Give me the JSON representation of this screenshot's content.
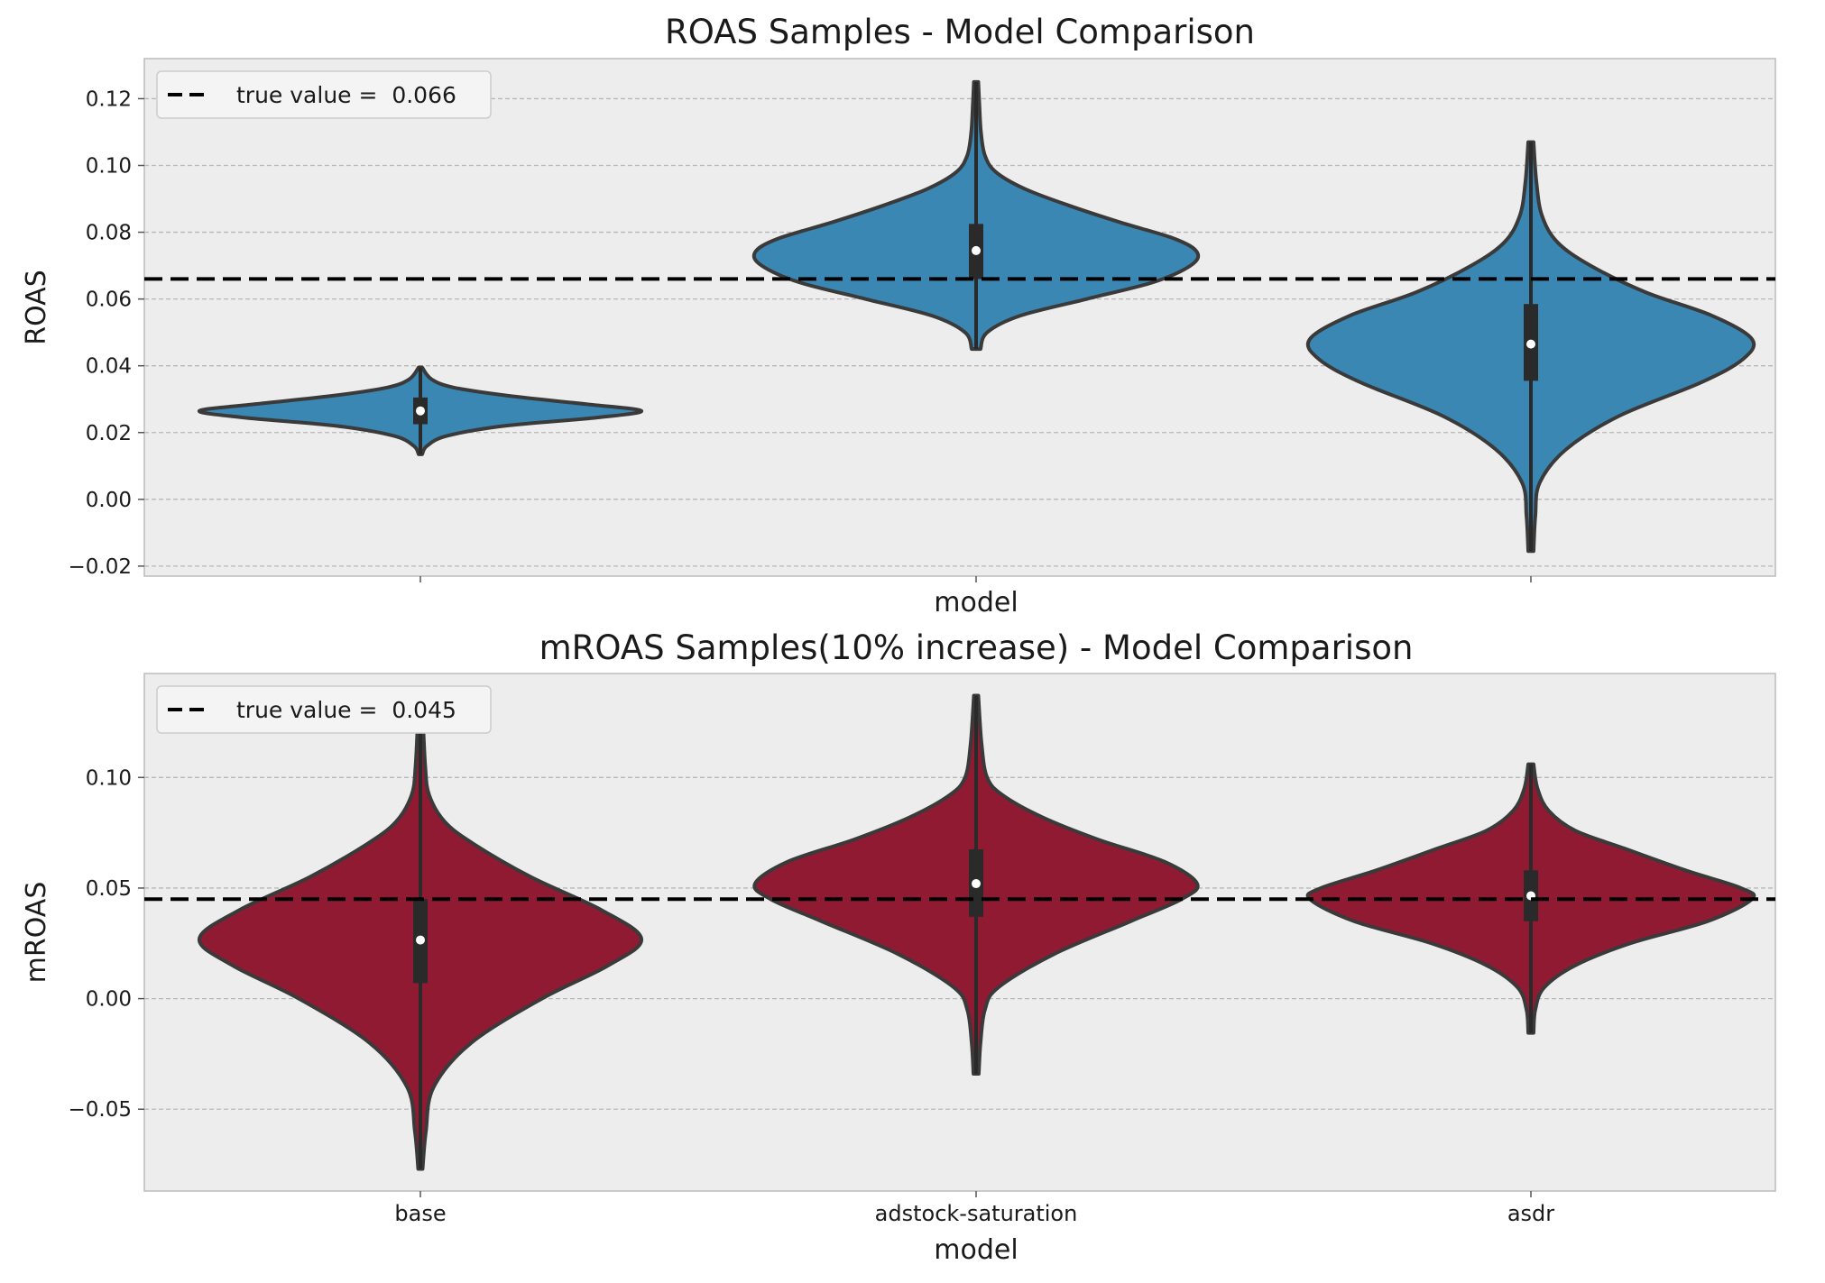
{
  "colors": {
    "figure_bg": "#ffffff",
    "axes_bg": "#ededed",
    "grid": "#b8b8b8",
    "spine": "#bcbcbc",
    "violin_edge": "#3a3a3a",
    "box": "#2a2a2a",
    "median": "#ffffff",
    "ref_line": "#000000",
    "roas_fill": "#3a87b4",
    "mroas_fill": "#911a33",
    "legend_bg": "#f4f4f4",
    "legend_edge": "#cccccc"
  },
  "chart_data": [
    {
      "type": "violin",
      "title": "ROAS Samples - Model Comparison",
      "xlabel": "model",
      "ylabel": "ROAS",
      "categories": [
        "base",
        "adstock-saturation",
        "asdr"
      ],
      "show_tick_labels": false,
      "ylim": [
        -0.023,
        0.132
      ],
      "yticks": [
        -0.02,
        0.0,
        0.02,
        0.04,
        0.06,
        0.08,
        0.1,
        0.12
      ],
      "ytick_labels": [
        "−0.02",
        "0.00",
        "0.02",
        "0.04",
        "0.06",
        "0.08",
        "0.10",
        "0.12"
      ],
      "grid": true,
      "legend_position": "upper-left",
      "reference_line": {
        "value": 0.066,
        "label": "true value =  0.066",
        "style": "dashed"
      },
      "series": [
        {
          "category": "base",
          "min": 0.0135,
          "max": 0.0395,
          "q1": 0.0225,
          "median": 0.0265,
          "q3": 0.0305,
          "profile": [
            [
              0.0135,
              0.008
            ],
            [
              0.016,
              0.03
            ],
            [
              0.019,
              0.12
            ],
            [
              0.022,
              0.38
            ],
            [
              0.0245,
              0.8
            ],
            [
              0.0265,
              1.0
            ],
            [
              0.0285,
              0.75
            ],
            [
              0.031,
              0.4
            ],
            [
              0.0335,
              0.15
            ],
            [
              0.036,
              0.05
            ],
            [
              0.0395,
              0.008
            ]
          ]
        },
        {
          "category": "adstock-saturation",
          "min": 0.045,
          "max": 0.125,
          "q1": 0.066,
          "median": 0.0745,
          "q3": 0.0825,
          "profile": [
            [
              0.045,
              0.02
            ],
            [
              0.05,
              0.05
            ],
            [
              0.055,
              0.2
            ],
            [
              0.06,
              0.5
            ],
            [
              0.065,
              0.8
            ],
            [
              0.07,
              0.97
            ],
            [
              0.074,
              1.0
            ],
            [
              0.078,
              0.9
            ],
            [
              0.083,
              0.65
            ],
            [
              0.088,
              0.42
            ],
            [
              0.093,
              0.22
            ],
            [
              0.098,
              0.09
            ],
            [
              0.103,
              0.04
            ],
            [
              0.11,
              0.022
            ],
            [
              0.118,
              0.015
            ],
            [
              0.125,
              0.01
            ]
          ]
        },
        {
          "category": "asdr",
          "min": -0.0155,
          "max": 0.107,
          "q1": 0.0355,
          "median": 0.0465,
          "q3": 0.0585,
          "profile": [
            [
              -0.0155,
              0.012
            ],
            [
              -0.005,
              0.02
            ],
            [
              0.005,
              0.04
            ],
            [
              0.015,
              0.16
            ],
            [
              0.025,
              0.4
            ],
            [
              0.035,
              0.77
            ],
            [
              0.042,
              0.96
            ],
            [
              0.048,
              1.0
            ],
            [
              0.055,
              0.82
            ],
            [
              0.062,
              0.52
            ],
            [
              0.07,
              0.27
            ],
            [
              0.077,
              0.12
            ],
            [
              0.085,
              0.05
            ],
            [
              0.095,
              0.025
            ],
            [
              0.107,
              0.012
            ]
          ]
        }
      ]
    },
    {
      "type": "violin",
      "title": "mROAS Samples(10% increase) - Model Comparison",
      "xlabel": "model",
      "ylabel": "mROAS",
      "categories": [
        "base",
        "adstock-saturation",
        "asdr"
      ],
      "show_tick_labels": true,
      "ylim": [
        -0.087,
        0.147
      ],
      "yticks": [
        -0.05,
        0.0,
        0.05,
        0.1
      ],
      "ytick_labels": [
        "−0.05",
        "0.00",
        "0.05",
        "0.10"
      ],
      "grid": true,
      "legend_position": "upper-left",
      "reference_line": {
        "value": 0.045,
        "label": "true value =  0.045",
        "style": "dashed"
      },
      "series": [
        {
          "category": "base",
          "min": -0.077,
          "max": 0.13,
          "q1": 0.007,
          "median": 0.0265,
          "q3": 0.045,
          "profile": [
            [
              -0.077,
              0.01
            ],
            [
              -0.06,
              0.025
            ],
            [
              -0.04,
              0.06
            ],
            [
              -0.02,
              0.23
            ],
            [
              0.0,
              0.55
            ],
            [
              0.015,
              0.85
            ],
            [
              0.027,
              1.0
            ],
            [
              0.04,
              0.82
            ],
            [
              0.055,
              0.5
            ],
            [
              0.07,
              0.24
            ],
            [
              0.08,
              0.11
            ],
            [
              0.092,
              0.04
            ],
            [
              0.105,
              0.022
            ],
            [
              0.13,
              0.01
            ]
          ]
        },
        {
          "category": "adstock-saturation",
          "min": -0.034,
          "max": 0.137,
          "q1": 0.037,
          "median": 0.052,
          "q3": 0.0675,
          "profile": [
            [
              -0.034,
              0.012
            ],
            [
              -0.02,
              0.02
            ],
            [
              -0.005,
              0.04
            ],
            [
              0.005,
              0.1
            ],
            [
              0.02,
              0.35
            ],
            [
              0.035,
              0.7
            ],
            [
              0.045,
              0.93
            ],
            [
              0.052,
              1.0
            ],
            [
              0.062,
              0.85
            ],
            [
              0.072,
              0.55
            ],
            [
              0.082,
              0.3
            ],
            [
              0.092,
              0.12
            ],
            [
              0.1,
              0.05
            ],
            [
              0.115,
              0.025
            ],
            [
              0.137,
              0.01
            ]
          ]
        },
        {
          "category": "asdr",
          "min": -0.0155,
          "max": 0.106,
          "q1": 0.035,
          "median": 0.0465,
          "q3": 0.058,
          "profile": [
            [
              -0.0155,
              0.012
            ],
            [
              -0.005,
              0.02
            ],
            [
              0.005,
              0.06
            ],
            [
              0.015,
              0.2
            ],
            [
              0.025,
              0.45
            ],
            [
              0.035,
              0.8
            ],
            [
              0.045,
              1.0
            ],
            [
              0.05,
              0.95
            ],
            [
              0.058,
              0.7
            ],
            [
              0.068,
              0.42
            ],
            [
              0.076,
              0.2
            ],
            [
              0.085,
              0.08
            ],
            [
              0.095,
              0.03
            ],
            [
              0.106,
              0.012
            ]
          ]
        }
      ]
    }
  ]
}
